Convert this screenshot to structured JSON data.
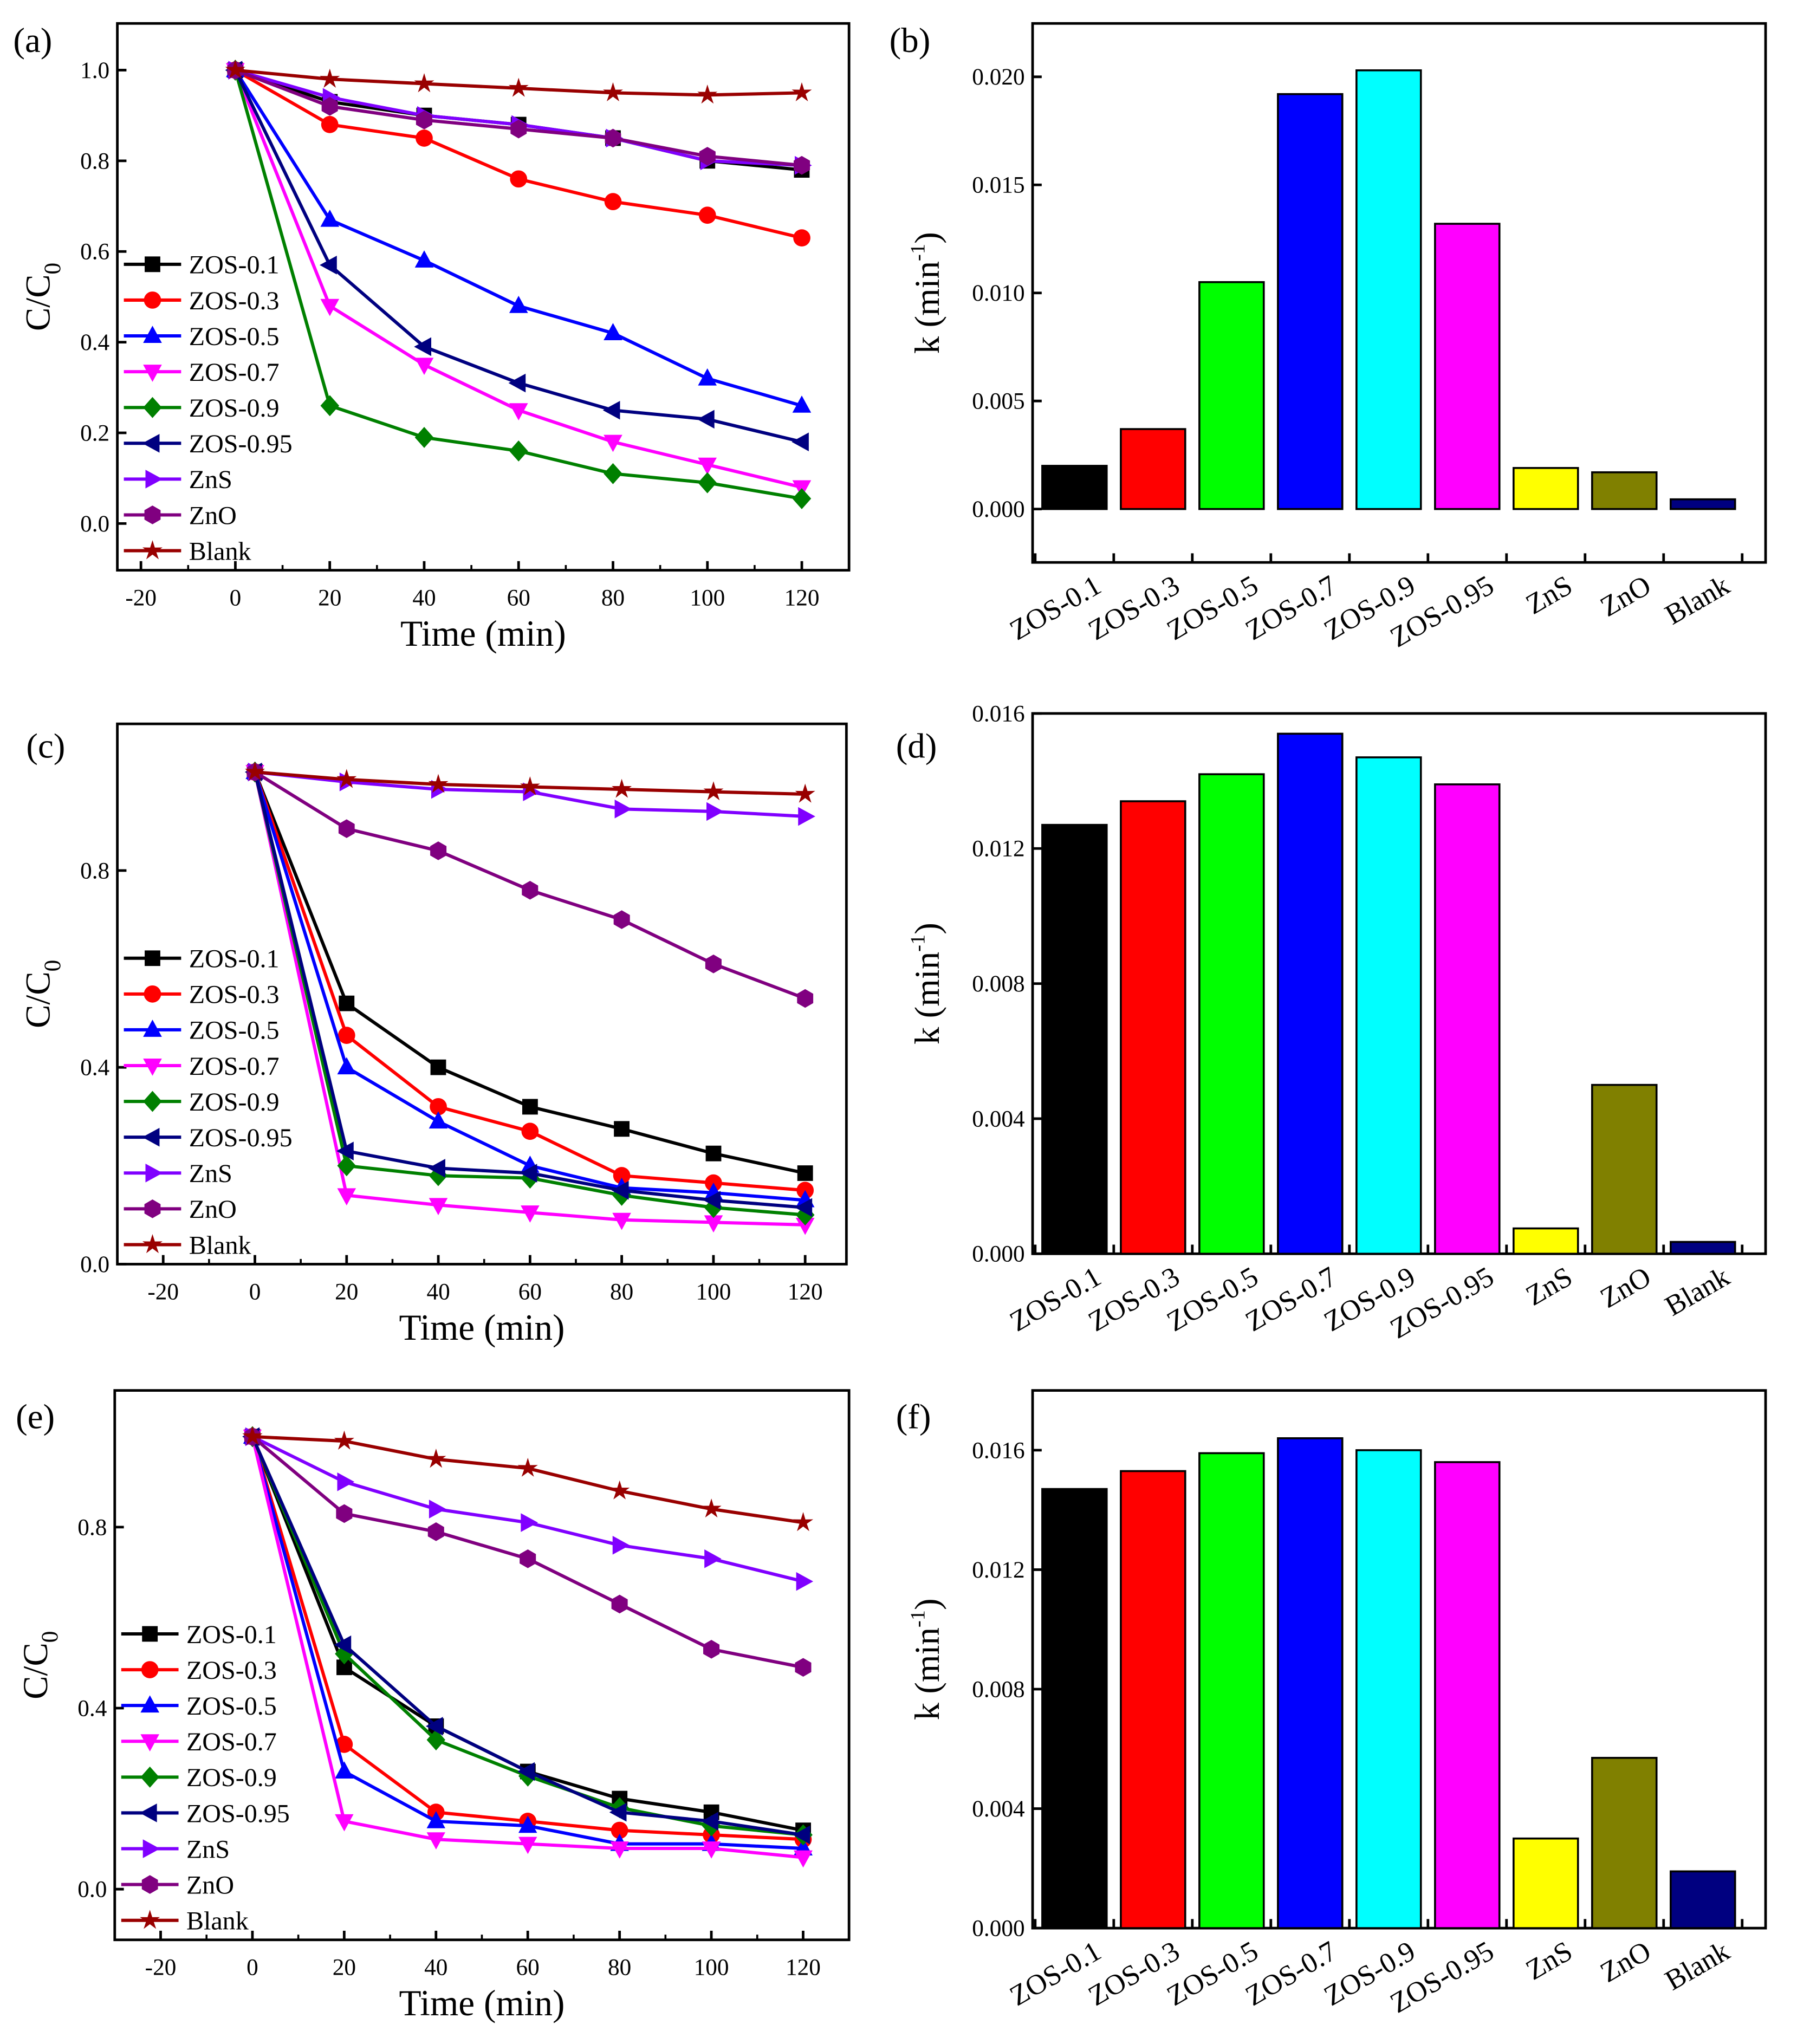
{
  "colors": {
    "ZOS-0.1": "#000000",
    "ZOS-0.3": "#ff0000",
    "ZOS-0.5": "#0000ff",
    "ZOS-0.7": "#ff00ff",
    "ZOS-0.9": "#008000",
    "ZOS-0.95": "#000080",
    "ZnS": "#8000ff",
    "ZnO": "#800080",
    "Blank": "#990000"
  },
  "bar_colors": [
    "#000000",
    "#ff0000",
    "#00ff00",
    "#0000ff",
    "#00ffff",
    "#ff00ff",
    "#ffff00",
    "#808000",
    "#000080"
  ],
  "markers": {
    "ZOS-0.1": "square",
    "ZOS-0.3": "circle",
    "ZOS-0.5": "triangle-up",
    "ZOS-0.7": "triangle-down",
    "ZOS-0.9": "diamond",
    "ZOS-0.95": "triangle-left",
    "ZnS": "triangle-right",
    "ZnO": "hexagon",
    "Blank": "star"
  },
  "chart_data": [
    {
      "panel": "(a)",
      "type": "line",
      "xlabel": "Time (min)",
      "ylabel": "C/C",
      "ylabel_sub": "0",
      "xlim": [
        -25,
        130
      ],
      "ylim": [
        -0.103,
        1.103
      ],
      "xticks": [
        -20,
        0,
        20,
        40,
        60,
        80,
        100,
        120
      ],
      "yticks": [
        0.0,
        0.2,
        0.4,
        0.6,
        0.8,
        1.0
      ],
      "ytick_labels": [
        "0.0",
        "0.2",
        "0.4",
        "0.6",
        "0.8",
        "1.0"
      ],
      "legend": "bottom-left",
      "x": [
        0,
        20,
        40,
        60,
        80,
        100,
        120
      ],
      "series": [
        {
          "name": "ZOS-0.1",
          "values": [
            1,
            0.93,
            0.9,
            0.88,
            0.85,
            0.8,
            0.78
          ]
        },
        {
          "name": "ZOS-0.3",
          "values": [
            1,
            0.88,
            0.85,
            0.76,
            0.71,
            0.68,
            0.63
          ]
        },
        {
          "name": "ZOS-0.5",
          "values": [
            1,
            0.67,
            0.58,
            0.48,
            0.42,
            0.32,
            0.26
          ]
        },
        {
          "name": "ZOS-0.7",
          "values": [
            1,
            0.48,
            0.35,
            0.25,
            0.18,
            0.13,
            0.08
          ]
        },
        {
          "name": "ZOS-0.9",
          "values": [
            1,
            0.26,
            0.19,
            0.16,
            0.11,
            0.09,
            0.055
          ]
        },
        {
          "name": "ZOS-0.95",
          "values": [
            1,
            0.57,
            0.39,
            0.31,
            0.25,
            0.23,
            0.18
          ]
        },
        {
          "name": "ZnS",
          "values": [
            1,
            0.94,
            0.9,
            0.88,
            0.85,
            0.8,
            0.79
          ]
        },
        {
          "name": "ZnO",
          "values": [
            1,
            0.92,
            0.89,
            0.87,
            0.85,
            0.81,
            0.79
          ]
        },
        {
          "name": "Blank",
          "values": [
            1,
            0.98,
            0.97,
            0.96,
            0.95,
            0.945,
            0.95
          ]
        }
      ]
    },
    {
      "panel": "(b)",
      "type": "bar",
      "ylabel": "k (min",
      "ylabel_sup": "-1",
      "ylabel_end": ")",
      "ylim": [
        -0.00247,
        0.02247
      ],
      "yticks": [
        0,
        0.005,
        0.01,
        0.015,
        0.02
      ],
      "ytick_labels": [
        "0.000",
        "0.005",
        "0.010",
        "0.015",
        "0.020"
      ],
      "categories": [
        "ZOS-0.1",
        "ZOS-0.3",
        "ZOS-0.5",
        "ZOS-0.7",
        "ZOS-0.9",
        "ZOS-0.95",
        "ZnS",
        "ZnO",
        "Blank"
      ],
      "values": [
        0.002,
        0.0037,
        0.0105,
        0.0192,
        0.0203,
        0.0132,
        0.0019,
        0.0017,
        0.00045
      ]
    },
    {
      "panel": "(c)",
      "type": "line",
      "xlabel": "Time (min)",
      "ylabel": "C/C",
      "ylabel_sub": "0",
      "xlim": [
        -30,
        129
      ],
      "ylim": [
        0,
        1.098
      ],
      "xticks": [
        -20,
        0,
        20,
        40,
        60,
        80,
        100,
        120
      ],
      "yticks": [
        0.0,
        0.4,
        0.8
      ],
      "ytick_labels": [
        "0.0",
        "0.4",
        "0.8"
      ],
      "legend": "bottom-left",
      "x": [
        0,
        20,
        40,
        60,
        80,
        100,
        120
      ],
      "series": [
        {
          "name": "ZOS-0.1",
          "values": [
            1,
            0.53,
            0.4,
            0.32,
            0.275,
            0.225,
            0.185
          ]
        },
        {
          "name": "ZOS-0.3",
          "values": [
            1,
            0.465,
            0.32,
            0.27,
            0.18,
            0.165,
            0.15
          ]
        },
        {
          "name": "ZOS-0.5",
          "values": [
            1,
            0.4,
            0.29,
            0.2,
            0.155,
            0.145,
            0.13
          ]
        },
        {
          "name": "ZOS-0.7",
          "values": [
            1,
            0.14,
            0.12,
            0.105,
            0.09,
            0.085,
            0.08
          ]
        },
        {
          "name": "ZOS-0.9",
          "values": [
            1,
            0.2,
            0.18,
            0.175,
            0.14,
            0.115,
            0.1
          ]
        },
        {
          "name": "ZOS-0.95",
          "values": [
            1,
            0.23,
            0.195,
            0.185,
            0.15,
            0.13,
            0.115
          ]
        },
        {
          "name": "ZnS",
          "values": [
            1,
            0.98,
            0.965,
            0.96,
            0.925,
            0.92,
            0.91
          ]
        },
        {
          "name": "ZnO",
          "values": [
            1,
            0.885,
            0.84,
            0.76,
            0.7,
            0.61,
            0.54
          ]
        },
        {
          "name": "Blank",
          "values": [
            1,
            0.985,
            0.975,
            0.97,
            0.965,
            0.96,
            0.955
          ]
        }
      ]
    },
    {
      "panel": "(d)",
      "type": "bar",
      "ylabel": "k (min",
      "ylabel_sup": "-1",
      "ylabel_end": ")",
      "ylim": [
        0,
        0.016
      ],
      "yticks": [
        0,
        0.004,
        0.008,
        0.012,
        0.016
      ],
      "ytick_labels": [
        "0.000",
        "0.004",
        "0.008",
        "0.012",
        "0.016"
      ],
      "categories": [
        "ZOS-0.1",
        "ZOS-0.3",
        "ZOS-0.5",
        "ZOS-0.7",
        "ZOS-0.9",
        "ZOS-0.95",
        "ZnS",
        "ZnO",
        "Blank"
      ],
      "values": [
        0.0127,
        0.0134,
        0.0142,
        0.0154,
        0.0147,
        0.0139,
        0.00075,
        0.005,
        0.00035
      ]
    },
    {
      "panel": "(e)",
      "type": "line",
      "xlabel": "Time (min)",
      "ylabel": "C/C",
      "ylabel_sub": "0",
      "xlim": [
        -30,
        130
      ],
      "ylim": [
        -0.112,
        1.102
      ],
      "xticks": [
        -20,
        0,
        20,
        40,
        60,
        80,
        100,
        120
      ],
      "yticks": [
        0.0,
        0.4,
        0.8
      ],
      "ytick_labels": [
        "0.0",
        "0.4",
        "0.8"
      ],
      "legend": "bottom-left",
      "x": [
        0,
        20,
        40,
        60,
        80,
        100,
        120
      ],
      "series": [
        {
          "name": "ZOS-0.1",
          "values": [
            1,
            0.49,
            0.36,
            0.26,
            0.2,
            0.17,
            0.13
          ]
        },
        {
          "name": "ZOS-0.3",
          "values": [
            1,
            0.32,
            0.17,
            0.15,
            0.13,
            0.12,
            0.11
          ]
        },
        {
          "name": "ZOS-0.5",
          "values": [
            1,
            0.26,
            0.15,
            0.14,
            0.1,
            0.1,
            0.09
          ]
        },
        {
          "name": "ZOS-0.7",
          "values": [
            1,
            0.15,
            0.11,
            0.1,
            0.09,
            0.09,
            0.07
          ]
        },
        {
          "name": "ZOS-0.9",
          "values": [
            1,
            0.52,
            0.33,
            0.25,
            0.18,
            0.14,
            0.12
          ]
        },
        {
          "name": "ZOS-0.95",
          "values": [
            1,
            0.54,
            0.36,
            0.26,
            0.17,
            0.15,
            0.12
          ]
        },
        {
          "name": "ZnS",
          "values": [
            1,
            0.9,
            0.84,
            0.81,
            0.76,
            0.73,
            0.68
          ]
        },
        {
          "name": "ZnO",
          "values": [
            1,
            0.83,
            0.79,
            0.73,
            0.63,
            0.53,
            0.49
          ]
        },
        {
          "name": "Blank",
          "values": [
            1,
            0.99,
            0.95,
            0.93,
            0.88,
            0.84,
            0.81
          ]
        }
      ]
    },
    {
      "panel": "(f)",
      "type": "bar",
      "ylabel": "k (min",
      "ylabel_sup": "-1",
      "ylabel_end": ")",
      "ylim": [
        0,
        0.018
      ],
      "yticks": [
        0,
        0.004,
        0.008,
        0.012,
        0.016
      ],
      "ytick_labels": [
        "0.000",
        "0.004",
        "0.008",
        "0.012",
        "0.016"
      ],
      "categories": [
        "ZOS-0.1",
        "ZOS-0.3",
        "ZOS-0.5",
        "ZOS-0.7",
        "ZOS-0.9",
        "ZOS-0.95",
        "ZnS",
        "ZnO",
        "Blank"
      ],
      "values": [
        0.0147,
        0.0153,
        0.0159,
        0.0164,
        0.016,
        0.0156,
        0.003,
        0.0057,
        0.0019
      ]
    }
  ]
}
